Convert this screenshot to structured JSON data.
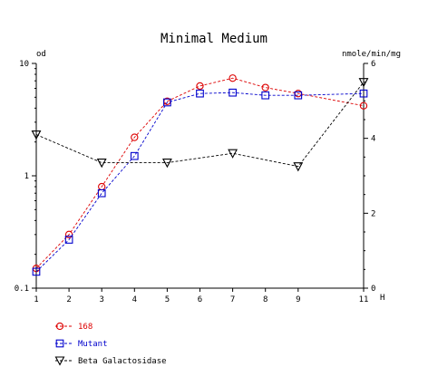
{
  "chart_data": {
    "type": "line",
    "title": "Minimal Medium",
    "x": [
      1,
      2,
      3,
      4,
      5,
      6,
      7,
      8,
      9,
      11
    ],
    "x_ticks": [
      "1",
      "2",
      "3",
      "4",
      "5",
      "6",
      "7",
      "8",
      "9",
      "11"
    ],
    "x_unit": "H",
    "xlim": [
      1,
      11
    ],
    "y_left": {
      "label": "od",
      "scale": "log",
      "lim": [
        0.1,
        10
      ],
      "ticks": [
        "0.1",
        "1",
        "10"
      ]
    },
    "y_right": {
      "label": "nmole/min/mg",
      "scale": "linear",
      "lim": [
        0,
        6
      ],
      "ticks": [
        "0",
        "2",
        "4",
        "6"
      ]
    },
    "grid": false,
    "legend": "bottom-left",
    "series": [
      {
        "name": "168",
        "axis": "left",
        "marker": "circle",
        "color": "#dd0000",
        "x": [
          1,
          2,
          3,
          4,
          5,
          6,
          7,
          8,
          9,
          11
        ],
        "values": [
          0.15,
          0.3,
          0.8,
          2.2,
          4.6,
          6.3,
          7.4,
          6.1,
          5.4,
          4.2
        ]
      },
      {
        "name": "Mutant",
        "axis": "left",
        "marker": "square",
        "color": "#0000cc",
        "x": [
          1,
          2,
          3,
          4,
          5,
          6,
          7,
          8,
          9,
          11
        ],
        "values": [
          0.14,
          0.27,
          0.7,
          1.5,
          4.5,
          5.4,
          5.5,
          5.2,
          5.2,
          5.4
        ]
      },
      {
        "name": "Beta Galactosidase",
        "axis": "right",
        "marker": "triangle-down",
        "color": "#000000",
        "x": [
          1,
          3,
          5,
          7,
          9,
          11
        ],
        "values": [
          4.1,
          3.35,
          3.35,
          3.6,
          3.25,
          5.5
        ]
      }
    ]
  }
}
